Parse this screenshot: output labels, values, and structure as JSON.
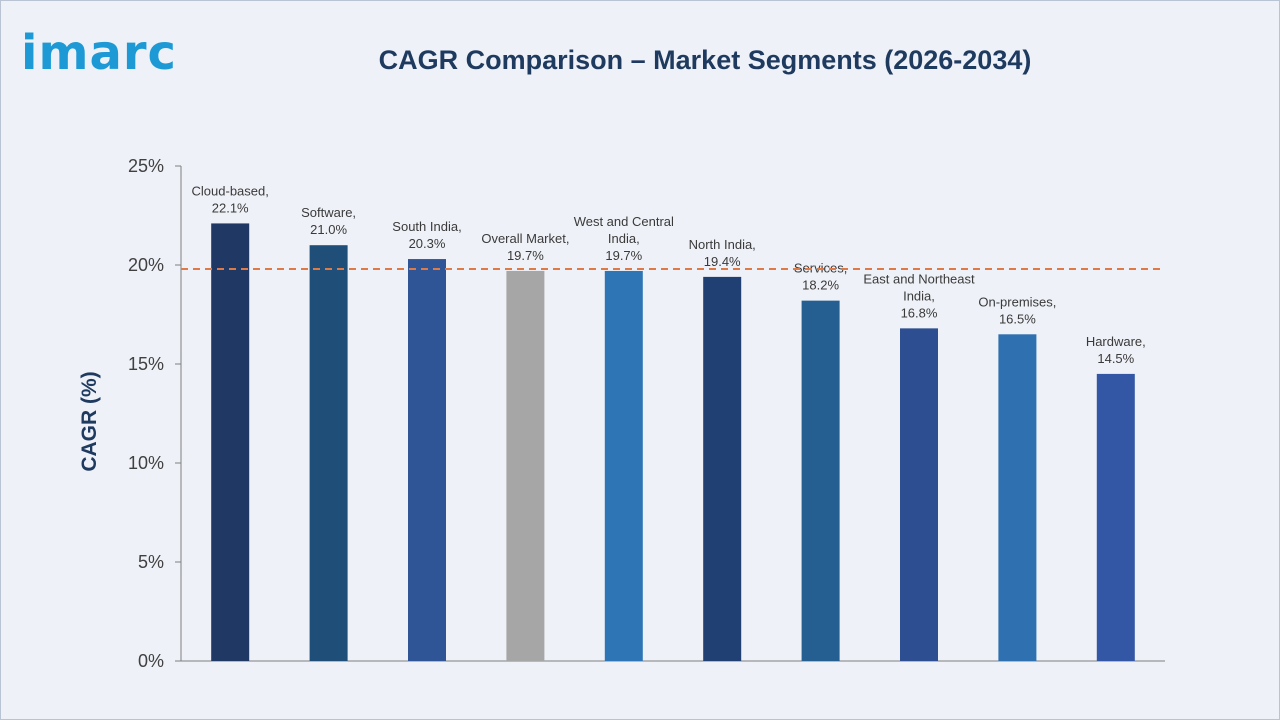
{
  "brand": {
    "logo_text": "imarc",
    "logo_color": "#1d9ad6"
  },
  "chart_data": {
    "type": "bar",
    "title": "CAGR Comparison – Market Segments (2026-2034)",
    "ylabel": "CAGR (%)",
    "xlabel": "",
    "ylim": [
      0,
      25
    ],
    "yticks": [
      0,
      5,
      10,
      15,
      20,
      25
    ],
    "ytick_labels": [
      "0%",
      "5%",
      "10%",
      "15%",
      "20%",
      "25%"
    ],
    "reference_line": {
      "value": 19.8,
      "style": "dashed",
      "color": "#e07a45"
    },
    "grid": false,
    "bars": [
      {
        "label": [
          "Cloud-based,",
          "22.1%"
        ],
        "value": 22.1,
        "color": "#1f3864"
      },
      {
        "label": [
          "Software,",
          "21.0%"
        ],
        "value": 21.0,
        "color": "#1f4e79"
      },
      {
        "label": [
          "South India,",
          "20.3%"
        ],
        "value": 20.3,
        "color": "#2f5597"
      },
      {
        "label": [
          "Overall Market,",
          "19.7%"
        ],
        "value": 19.7,
        "color": "#a6a6a6"
      },
      {
        "label": [
          "West and Central",
          "India,",
          "19.7%"
        ],
        "value": 19.7,
        "color": "#2e75b6"
      },
      {
        "label": [
          "North India,",
          "19.4%"
        ],
        "value": 19.4,
        "color": "#203f73"
      },
      {
        "label": [
          "Services,",
          "18.2%"
        ],
        "value": 18.2,
        "color": "#255e91"
      },
      {
        "label": [
          "East and Northeast",
          "India,",
          "16.8%"
        ],
        "value": 16.8,
        "color": "#2d4f92"
      },
      {
        "label": [
          "On-premises,",
          "16.5%"
        ],
        "value": 16.5,
        "color": "#2e70b0"
      },
      {
        "label": [
          "Hardware,",
          "14.5%"
        ],
        "value": 14.5,
        "color": "#3457a5"
      }
    ]
  }
}
